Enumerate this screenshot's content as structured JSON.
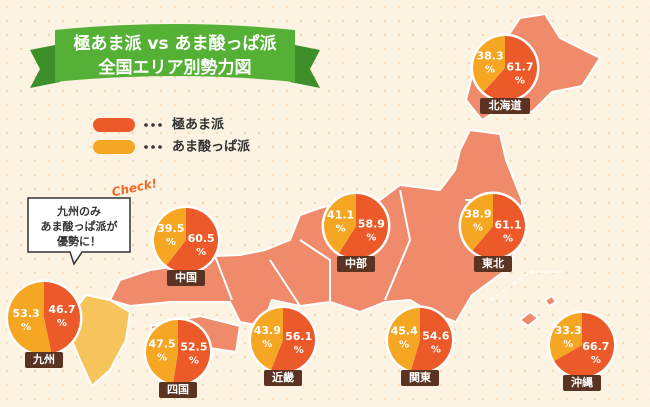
{
  "title": [
    "極あま派 vs あま酸っぱ派",
    "全国エリア別勢力図"
  ],
  "legend": [
    {
      "name": "極あま派",
      "color": "#ec5a2a"
    },
    {
      "name": "あま酸っぱ派",
      "color": "#f5a623"
    }
  ],
  "note": {
    "tag": "Check!",
    "lines": [
      "九州のみ",
      "あま酸っぱ派が",
      "優勢に！"
    ]
  },
  "unit": "%",
  "regions": [
    {
      "name": "北海道",
      "values": [
        61.7,
        38.3
      ]
    },
    {
      "name": "東北",
      "values": [
        61.1,
        38.9
      ]
    },
    {
      "name": "中部",
      "values": [
        58.9,
        41.1
      ]
    },
    {
      "name": "中国",
      "values": [
        60.5,
        39.5
      ]
    },
    {
      "name": "九州",
      "values": [
        46.7,
        53.3
      ]
    },
    {
      "name": "四国",
      "values": [
        52.5,
        47.5
      ]
    },
    {
      "name": "近畿",
      "values": [
        56.1,
        43.9
      ]
    },
    {
      "name": "関東",
      "values": [
        54.6,
        45.4
      ]
    },
    {
      "name": "沖縄",
      "values": [
        66.7,
        33.3
      ]
    }
  ]
}
